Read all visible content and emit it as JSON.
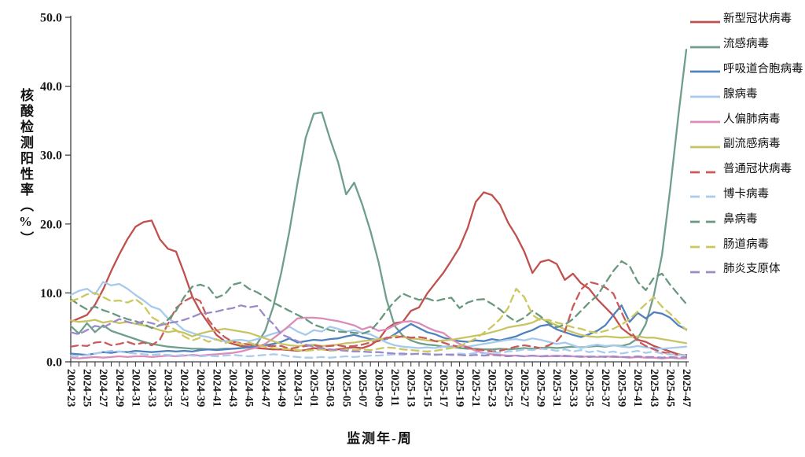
{
  "chart_data": {
    "type": "line",
    "title": "",
    "xlabel": "监测年-周",
    "ylabel": "核酸检测阳性率（%）",
    "ylim": [
      0,
      50
    ],
    "grid": false,
    "legend_position": "right",
    "y_tick_labels": [
      "0.0",
      "10.0",
      "20.0",
      "30.0",
      "40.0",
      "50.0"
    ],
    "x_tick_labels_shown_every": 2,
    "x": [
      "2024-23",
      "2024-24",
      "2024-25",
      "2024-26",
      "2024-27",
      "2024-28",
      "2024-29",
      "2024-30",
      "2024-31",
      "2024-32",
      "2024-33",
      "2024-34",
      "2024-35",
      "2024-36",
      "2024-37",
      "2024-38",
      "2024-39",
      "2024-40",
      "2024-41",
      "2024-42",
      "2024-43",
      "2024-44",
      "2024-45",
      "2024-46",
      "2024-47",
      "2024-48",
      "2024-49",
      "2024-50",
      "2024-51",
      "2024-52",
      "2025-01",
      "2025-02",
      "2025-03",
      "2025-04",
      "2025-05",
      "2025-06",
      "2025-07",
      "2025-08",
      "2025-09",
      "2025-10",
      "2025-11",
      "2025-12",
      "2025-13",
      "2025-14",
      "2025-15",
      "2025-16",
      "2025-17",
      "2025-18",
      "2025-19",
      "2025-20",
      "2025-21",
      "2025-22",
      "2025-23",
      "2025-24",
      "2025-25",
      "2025-26",
      "2025-27",
      "2025-28",
      "2025-29",
      "2025-30",
      "2025-31",
      "2025-32",
      "2025-33",
      "2025-34",
      "2025-35",
      "2025-36",
      "2025-37",
      "2025-38",
      "2025-39",
      "2025-40",
      "2025-41",
      "2025-42",
      "2025-43",
      "2025-44",
      "2025-45",
      "2025-46",
      "2025-47"
    ],
    "series": [
      {
        "key": "novel-coronavirus",
        "name": "新型冠状病毒",
        "color": "#c0504d",
        "line": "solid",
        "values": [
          5.8,
          6.3,
          6.8,
          8.3,
          10.5,
          13.2,
          15.6,
          17.8,
          19.6,
          20.3,
          20.5,
          17.8,
          16.4,
          16.0,
          12.9,
          9.5,
          7.3,
          5.6,
          3.9,
          3.0,
          2.6,
          2.3,
          2.2,
          2.0,
          1.9,
          1.8,
          1.8,
          1.7,
          1.6,
          1.7,
          2.0,
          1.8,
          1.7,
          1.8,
          2.0,
          2.1,
          2.0,
          2.4,
          3.2,
          4.8,
          5.6,
          5.8,
          7.4,
          7.9,
          9.9,
          11.4,
          12.9,
          14.7,
          16.6,
          19.4,
          23.2,
          24.6,
          24.2,
          22.8,
          20.2,
          18.3,
          16.0,
          12.9,
          14.5,
          14.8,
          14.2,
          11.9,
          12.8,
          11.4,
          10.6,
          9.1,
          7.9,
          6.7,
          4.9,
          4.0,
          3.2,
          2.9,
          2.3,
          1.9,
          1.5,
          1.1,
          0.9
        ]
      },
      {
        "key": "influenza",
        "name": "流感病毒",
        "color": "#6f9e8a",
        "line": "solid",
        "values": [
          5.2,
          4.1,
          5.6,
          4.3,
          5.3,
          4.5,
          4.1,
          3.7,
          3.3,
          2.9,
          2.6,
          2.4,
          2.2,
          2.1,
          2.0,
          1.9,
          1.9,
          1.8,
          1.8,
          1.9,
          1.9,
          2.0,
          2.1,
          2.6,
          4.5,
          8.0,
          13.0,
          19.0,
          26.0,
          32.5,
          36.0,
          36.2,
          32.4,
          29.0,
          24.3,
          26.0,
          22.8,
          19.0,
          14.5,
          9.0,
          5.2,
          3.8,
          3.1,
          2.7,
          2.5,
          2.4,
          2.2,
          2.2,
          2.0,
          1.9,
          1.9,
          1.8,
          1.8,
          1.9,
          1.8,
          1.9,
          2.0,
          1.9,
          2.0,
          2.1,
          2.0,
          2.1,
          2.2,
          2.1,
          2.2,
          2.3,
          2.2,
          2.4,
          2.3,
          2.6,
          3.4,
          5.5,
          9.7,
          15.5,
          25.0,
          35.5,
          45.3
        ]
      },
      {
        "key": "rsv",
        "name": "呼吸道合胞病毒",
        "color": "#4f81bd",
        "line": "solid",
        "values": [
          1.2,
          1.1,
          1.0,
          1.2,
          1.4,
          1.3,
          1.5,
          1.4,
          1.6,
          1.5,
          1.4,
          1.5,
          1.6,
          1.5,
          1.6,
          1.5,
          1.7,
          1.8,
          1.7,
          1.8,
          1.9,
          2.0,
          2.1,
          2.2,
          2.4,
          2.6,
          2.9,
          3.4,
          2.8,
          3.0,
          3.2,
          3.1,
          3.3,
          3.4,
          3.7,
          3.9,
          3.6,
          3.3,
          3.2,
          3.3,
          4.0,
          4.8,
          5.5,
          4.9,
          4.3,
          4.0,
          3.5,
          3.2,
          3.0,
          2.9,
          3.1,
          3.0,
          3.3,
          3.1,
          3.4,
          3.7,
          4.2,
          4.6,
          5.2,
          5.4,
          4.7,
          4.3,
          3.9,
          3.6,
          4.0,
          4.5,
          5.3,
          6.8,
          8.2,
          5.8,
          7.1,
          6.3,
          7.2,
          7.0,
          6.4,
          5.3,
          4.7
        ]
      },
      {
        "key": "adenovirus",
        "name": "腺病毒",
        "color": "#a6caec",
        "line": "solid",
        "values": [
          9.7,
          10.3,
          10.6,
          9.8,
          11.6,
          11.1,
          11.3,
          10.6,
          9.7,
          8.9,
          8.0,
          7.6,
          6.3,
          5.6,
          4.6,
          4.2,
          3.8,
          3.6,
          3.2,
          3.0,
          3.1,
          3.2,
          3.0,
          3.3,
          3.7,
          4.1,
          4.4,
          5.1,
          4.4,
          3.9,
          4.6,
          4.4,
          5.1,
          4.8,
          4.4,
          4.6,
          4.2,
          4.0,
          3.4,
          2.8,
          2.4,
          2.2,
          2.1,
          2.0,
          2.1,
          2.0,
          2.2,
          2.1,
          2.3,
          2.2,
          2.4,
          2.6,
          2.8,
          3.0,
          3.2,
          3.3,
          3.1,
          3.4,
          3.2,
          2.9,
          2.6,
          2.8,
          2.4,
          2.0,
          2.3,
          2.5,
          2.3,
          2.4,
          2.2,
          2.1,
          2.3,
          2.1,
          2.0,
          1.9,
          2.0,
          2.1,
          2.2
        ]
      },
      {
        "key": "hmpv",
        "name": "人偏肺病毒",
        "color": "#db8cb8",
        "line": "solid",
        "values": [
          0.6,
          0.5,
          0.6,
          0.7,
          0.6,
          0.7,
          0.8,
          0.7,
          0.8,
          0.8,
          0.7,
          0.8,
          0.9,
          0.8,
          0.9,
          1.0,
          0.9,
          1.0,
          1.1,
          1.2,
          1.3,
          1.5,
          1.8,
          2.1,
          2.6,
          3.4,
          4.3,
          5.3,
          6.3,
          6.4,
          6.4,
          6.3,
          6.1,
          5.9,
          5.6,
          5.3,
          4.7,
          5.1,
          4.5,
          4.7,
          5.3,
          5.8,
          5.9,
          5.6,
          5.0,
          4.5,
          4.2,
          3.3,
          2.6,
          2.1,
          1.6,
          1.3,
          1.1,
          1.0,
          0.9,
          0.9,
          0.8,
          0.9,
          0.8,
          0.8,
          0.9,
          0.8,
          0.8,
          0.7,
          0.8,
          0.7,
          0.8,
          0.7,
          0.7,
          0.6,
          0.7,
          0.6,
          0.6,
          0.5,
          0.6,
          0.5,
          0.5
        ]
      },
      {
        "key": "parainfluenza",
        "name": "副流感病毒",
        "color": "#c8c464",
        "line": "solid",
        "values": [
          6.0,
          5.8,
          5.9,
          6.1,
          5.7,
          5.9,
          5.6,
          5.8,
          5.5,
          5.3,
          5.0,
          4.6,
          4.3,
          4.5,
          4.2,
          3.7,
          4.1,
          4.4,
          4.6,
          4.8,
          4.6,
          4.4,
          4.2,
          3.8,
          3.4,
          3.0,
          2.6,
          2.4,
          2.3,
          2.4,
          2.5,
          2.3,
          2.4,
          2.5,
          2.7,
          2.8,
          3.0,
          3.1,
          3.3,
          3.4,
          3.8,
          3.6,
          3.4,
          3.3,
          3.1,
          3.0,
          3.1,
          3.2,
          3.4,
          3.6,
          3.8,
          4.0,
          4.3,
          4.6,
          5.0,
          5.2,
          5.4,
          5.7,
          6.3,
          5.8,
          5.3,
          4.7,
          4.3,
          3.9,
          3.7,
          3.6,
          3.7,
          3.6,
          3.5,
          3.6,
          3.7,
          3.5,
          3.5,
          3.3,
          3.1,
          2.9,
          2.7
        ]
      },
      {
        "key": "common-coronavirus",
        "name": "普通冠状病毒",
        "color": "#cb5a5a",
        "line": "dashed",
        "values": [
          2.2,
          2.4,
          2.3,
          2.8,
          2.9,
          2.4,
          2.6,
          2.9,
          2.5,
          2.8,
          2.4,
          3.2,
          5.5,
          7.8,
          8.8,
          9.4,
          8.8,
          6.1,
          4.6,
          3.6,
          2.9,
          2.7,
          2.5,
          2.4,
          2.3,
          2.3,
          2.3,
          1.9,
          2.1,
          2.3,
          2.4,
          2.2,
          2.3,
          2.4,
          2.2,
          2.3,
          2.5,
          2.8,
          3.0,
          3.5,
          3.5,
          3.7,
          3.5,
          3.6,
          3.4,
          3.0,
          2.8,
          2.4,
          2.2,
          2.1,
          1.8,
          1.7,
          1.5,
          1.6,
          1.9,
          2.2,
          2.4,
          2.2,
          2.0,
          2.4,
          3.0,
          4.4,
          8.0,
          10.5,
          11.6,
          11.3,
          10.8,
          9.9,
          7.2,
          4.7,
          3.0,
          2.3,
          1.8,
          1.4,
          1.2,
          1.0,
          1.0
        ]
      },
      {
        "key": "bocavirus",
        "name": "博卡病毒",
        "color": "#a9ccec",
        "line": "dashed",
        "values": [
          0.9,
          0.8,
          1.0,
          1.2,
          1.4,
          1.6,
          1.5,
          1.3,
          1.2,
          1.1,
          1.0,
          1.1,
          1.0,
          0.9,
          1.0,
          0.9,
          0.8,
          0.9,
          0.8,
          0.9,
          1.0,
          0.9,
          0.8,
          0.9,
          1.0,
          1.1,
          1.0,
          0.8,
          0.7,
          0.6,
          0.6,
          0.7,
          0.6,
          0.7,
          0.8,
          0.7,
          0.8,
          0.9,
          0.9,
          1.0,
          1.1,
          1.0,
          1.2,
          1.1,
          1.2,
          1.1,
          1.0,
          1.1,
          1.2,
          1.1,
          1.3,
          1.2,
          1.4,
          1.3,
          1.5,
          1.6,
          1.8,
          1.7,
          1.9,
          1.8,
          1.6,
          1.8,
          1.5,
          1.7,
          1.4,
          1.6,
          1.3,
          1.5,
          1.2,
          1.4,
          1.6,
          1.3,
          1.5,
          1.2,
          1.1,
          1.0,
          0.9
        ]
      },
      {
        "key": "rhinovirus",
        "name": "鼻病毒",
        "color": "#68987e",
        "line": "dashed",
        "values": [
          9.1,
          8.3,
          7.6,
          8.0,
          7.5,
          7.1,
          6.6,
          6.2,
          5.9,
          5.5,
          4.9,
          5.3,
          6.1,
          7.4,
          9.4,
          10.9,
          11.2,
          10.8,
          9.3,
          9.8,
          11.2,
          11.5,
          10.6,
          10.1,
          9.4,
          8.6,
          8.0,
          7.4,
          6.8,
          6.2,
          5.4,
          5.0,
          4.6,
          4.4,
          4.3,
          4.2,
          4.1,
          4.5,
          5.8,
          7.4,
          8.8,
          9.9,
          9.4,
          9.0,
          9.2,
          8.8,
          9.1,
          9.3,
          7.8,
          8.6,
          9.0,
          9.1,
          8.4,
          7.6,
          6.6,
          5.8,
          6.4,
          7.4,
          6.6,
          5.6,
          5.0,
          5.4,
          6.2,
          7.4,
          8.6,
          9.6,
          11.4,
          13.2,
          14.6,
          13.9,
          11.6,
          10.4,
          12.2,
          12.8,
          11.2,
          9.8,
          8.4
        ]
      },
      {
        "key": "enterovirus",
        "name": "肠道病毒",
        "color": "#cdc75f",
        "line": "dashed",
        "values": [
          8.8,
          9.2,
          9.8,
          10.0,
          9.4,
          8.8,
          8.9,
          8.6,
          9.1,
          8.2,
          6.5,
          5.8,
          5.2,
          4.6,
          3.7,
          3.1,
          3.5,
          2.9,
          3.3,
          2.7,
          3.0,
          2.5,
          2.8,
          2.4,
          2.2,
          2.0,
          1.9,
          1.8,
          1.7,
          1.6,
          1.7,
          1.8,
          1.6,
          1.7,
          1.8,
          1.7,
          1.8,
          1.7,
          1.9,
          2.1,
          2.0,
          1.8,
          1.7,
          1.6,
          1.5,
          1.6,
          1.8,
          2.0,
          2.3,
          2.8,
          3.4,
          4.2,
          5.1,
          6.2,
          7.8,
          10.6,
          9.4,
          6.8,
          6.0,
          6.1,
          5.7,
          5.4,
          5.0,
          4.8,
          4.4,
          4.2,
          4.5,
          4.8,
          5.4,
          6.2,
          7.3,
          8.4,
          9.4,
          8.0,
          7.0,
          5.8,
          4.6
        ]
      },
      {
        "key": "mycoplasma",
        "name": "肺炎支原体",
        "color": "#9d8bc9",
        "line": "dashed",
        "values": [
          4.3,
          4.0,
          4.6,
          5.2,
          5.0,
          5.6,
          6.2,
          5.8,
          5.5,
          5.9,
          5.6,
          5.3,
          5.6,
          5.8,
          6.1,
          6.5,
          7.0,
          7.1,
          7.3,
          7.6,
          7.8,
          8.2,
          7.9,
          8.1,
          6.6,
          5.5,
          4.0,
          3.5,
          3.0,
          2.5,
          2.2,
          2.0,
          1.8,
          1.7,
          1.6,
          1.5,
          1.5,
          1.4,
          1.4,
          1.3,
          1.2,
          1.2,
          1.1,
          1.2,
          1.1,
          1.0,
          1.1,
          1.0,
          1.0,
          0.9,
          1.0,
          0.9,
          1.0,
          0.9,
          0.8,
          0.9,
          0.8,
          0.9,
          0.8,
          0.9,
          0.8,
          0.9,
          0.8,
          0.8,
          0.7,
          0.8,
          0.7,
          0.8,
          0.7,
          0.7,
          0.8,
          0.7,
          0.7,
          0.6,
          0.7,
          0.6,
          0.7
        ]
      }
    ]
  }
}
